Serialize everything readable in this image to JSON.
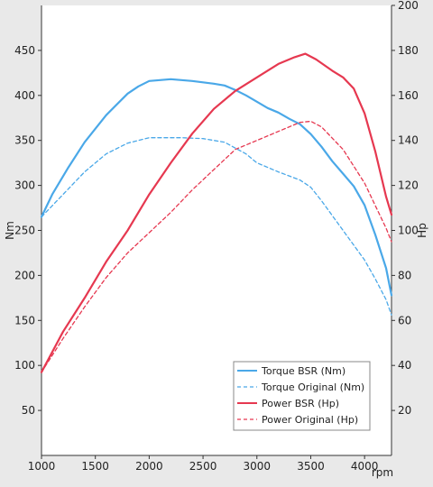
{
  "chart_data": {
    "type": "line",
    "title": "",
    "xlabel": "rpm",
    "ylabel_left": "Nm",
    "ylabel_right": "Hp",
    "xlim": [
      1000,
      4250
    ],
    "ylim_left": [
      0,
      500
    ],
    "ylim_right": [
      0,
      200
    ],
    "x_ticks": [
      1000,
      1500,
      2000,
      2500,
      3000,
      3500,
      4000
    ],
    "y_left_ticks": [
      50,
      100,
      150,
      200,
      250,
      300,
      350,
      400,
      450
    ],
    "y_right_ticks": [
      20,
      40,
      60,
      80,
      100,
      120,
      140,
      160,
      180,
      200
    ],
    "grid": false,
    "legend_position": "bottom-right",
    "series": [
      {
        "name": "Torque BSR (Nm)",
        "axis": "left",
        "color": "#4aa8e8",
        "dash": "solid",
        "points": [
          [
            1000,
            265
          ],
          [
            1100,
            290
          ],
          [
            1250,
            320
          ],
          [
            1400,
            348
          ],
          [
            1600,
            378
          ],
          [
            1800,
            402
          ],
          [
            1900,
            410
          ],
          [
            2000,
            416
          ],
          [
            2200,
            418
          ],
          [
            2400,
            416
          ],
          [
            2600,
            413
          ],
          [
            2700,
            411
          ],
          [
            2800,
            406
          ],
          [
            2900,
            400
          ],
          [
            3000,
            393
          ],
          [
            3100,
            386
          ],
          [
            3200,
            381
          ],
          [
            3300,
            374
          ],
          [
            3400,
            368
          ],
          [
            3500,
            357
          ],
          [
            3600,
            343
          ],
          [
            3700,
            327
          ],
          [
            3800,
            313
          ],
          [
            3900,
            299
          ],
          [
            4000,
            278
          ],
          [
            4100,
            245
          ],
          [
            4200,
            208
          ],
          [
            4250,
            178
          ]
        ]
      },
      {
        "name": "Torque Original (Nm)",
        "axis": "left",
        "color": "#4aa8e8",
        "dash": "dashed",
        "points": [
          [
            1000,
            265
          ],
          [
            1200,
            290
          ],
          [
            1400,
            315
          ],
          [
            1600,
            335
          ],
          [
            1800,
            347
          ],
          [
            2000,
            353
          ],
          [
            2300,
            353
          ],
          [
            2500,
            352
          ],
          [
            2700,
            348
          ],
          [
            2900,
            335
          ],
          [
            3000,
            325
          ],
          [
            3200,
            315
          ],
          [
            3400,
            306
          ],
          [
            3500,
            298
          ],
          [
            3600,
            283
          ],
          [
            3800,
            250
          ],
          [
            4000,
            217
          ],
          [
            4100,
            196
          ],
          [
            4200,
            173
          ],
          [
            4250,
            156
          ]
        ]
      },
      {
        "name": "Power BSR (Hp)",
        "axis": "right",
        "color": "#e63850",
        "dash": "solid",
        "points": [
          [
            1000,
            37
          ],
          [
            1200,
            55
          ],
          [
            1400,
            70
          ],
          [
            1600,
            86
          ],
          [
            1800,
            100
          ],
          [
            2000,
            116
          ],
          [
            2200,
            130
          ],
          [
            2400,
            143
          ],
          [
            2600,
            154
          ],
          [
            2800,
            162
          ],
          [
            3000,
            168
          ],
          [
            3200,
            174
          ],
          [
            3350,
            177
          ],
          [
            3450,
            178.5
          ],
          [
            3550,
            176
          ],
          [
            3700,
            171
          ],
          [
            3800,
            168
          ],
          [
            3900,
            163
          ],
          [
            4000,
            152
          ],
          [
            4100,
            135
          ],
          [
            4200,
            115
          ],
          [
            4250,
            107
          ]
        ]
      },
      {
        "name": "Power Original (Hp)",
        "axis": "right",
        "color": "#e63850",
        "dash": "dashed",
        "points": [
          [
            1000,
            37
          ],
          [
            1200,
            52
          ],
          [
            1400,
            66
          ],
          [
            1600,
            79
          ],
          [
            1800,
            90
          ],
          [
            2000,
            99
          ],
          [
            2200,
            108
          ],
          [
            2400,
            118
          ],
          [
            2600,
            127
          ],
          [
            2800,
            136
          ],
          [
            3000,
            140
          ],
          [
            3200,
            144
          ],
          [
            3400,
            148
          ],
          [
            3500,
            148.5
          ],
          [
            3600,
            146
          ],
          [
            3800,
            136
          ],
          [
            4000,
            121
          ],
          [
            4100,
            111
          ],
          [
            4200,
            101
          ],
          [
            4250,
            95
          ]
        ]
      }
    ]
  }
}
